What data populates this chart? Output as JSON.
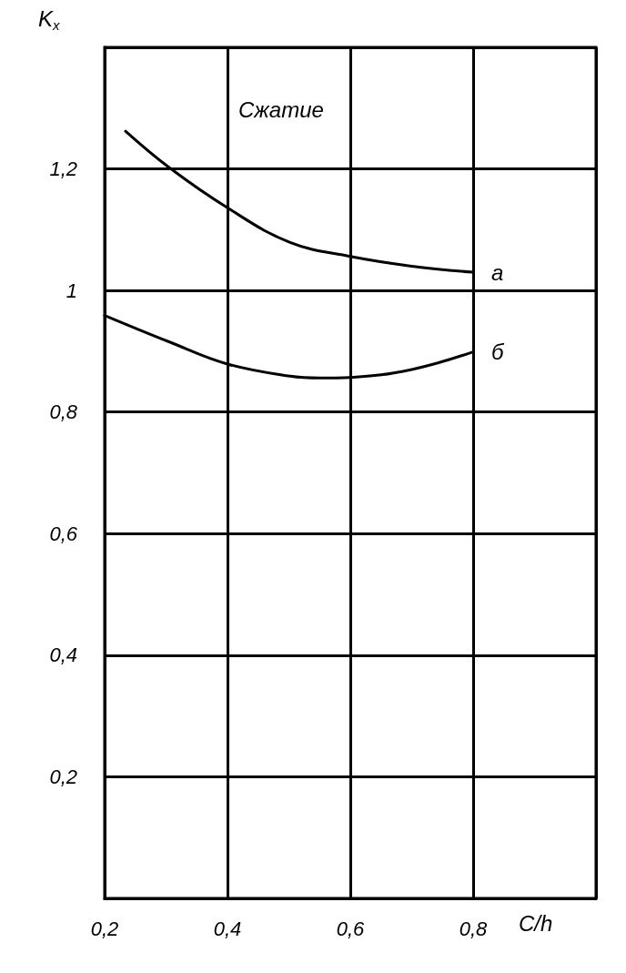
{
  "chart_data": {
    "type": "line",
    "ylabel": "K$_{x}$",
    "xlabel": "C/h",
    "annotations": [
      "Сжатие"
    ],
    "series": [
      {
        "name": "a",
        "color": "#000000",
        "x": [
          0.234,
          0.304,
          0.4,
          0.502,
          0.6,
          0.7,
          0.8
        ],
        "values": [
          1.262,
          1.203,
          1.136,
          1.079,
          1.056,
          1.04,
          1.03
        ]
      },
      {
        "name": "б",
        "color": "#000000",
        "x": [
          0.2,
          0.304,
          0.4,
          0.502,
          0.551,
          0.6,
          0.7,
          0.8
        ],
        "values": [
          0.959,
          0.916,
          0.879,
          0.859,
          0.856,
          0.857,
          0.87,
          0.899
        ]
      }
    ],
    "xlim": [
      0.2,
      1.0
    ],
    "xticks": [
      {
        "value": 0.2,
        "label": "0,2"
      },
      {
        "value": 0.4,
        "label": "0,4"
      },
      {
        "value": 0.6,
        "label": "0,6"
      },
      {
        "value": 0.8,
        "label": "0,8"
      },
      {
        "value": 1.0,
        "label": null
      }
    ],
    "ylim": [
      0,
      1.4
    ],
    "yticks": [
      {
        "value": 0,
        "label": null
      },
      {
        "value": 0.2,
        "label": "0,2"
      },
      {
        "value": 0.4,
        "label": "0,4"
      },
      {
        "value": 0.6,
        "label": "0,6"
      },
      {
        "value": 0.8,
        "label": "0,8"
      },
      {
        "value": 1,
        "label": "1"
      },
      {
        "value": 1.2,
        "label": "1,2"
      },
      {
        "value": 1.4,
        "label": null
      }
    ],
    "grid": true,
    "legend": false,
    "marker": "none",
    "line_style": "solid"
  }
}
